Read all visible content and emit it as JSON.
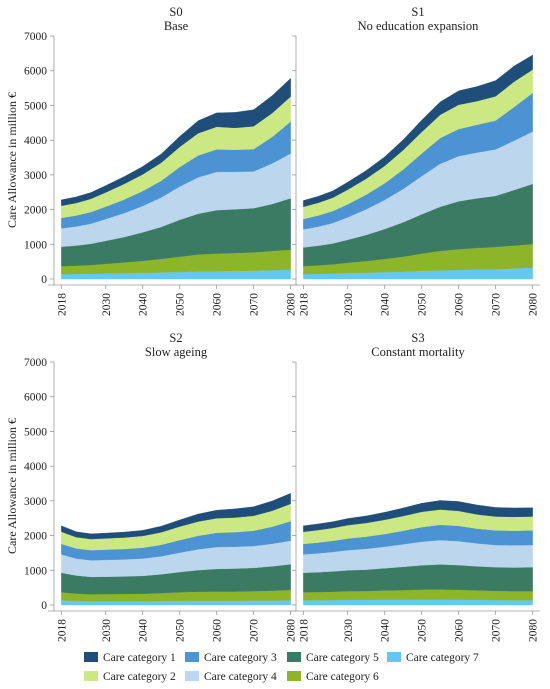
{
  "ylabel": "Care Allowance in million €",
  "yticks": [
    0,
    1000,
    2000,
    3000,
    4000,
    5000,
    6000,
    7000
  ],
  "xticks": [
    2018,
    2030,
    2040,
    2050,
    2060,
    2070,
    2080
  ],
  "legend": [
    {
      "name": "Care category 1",
      "color": "#1e4e79"
    },
    {
      "name": "Care category 2",
      "color": "#cce883"
    },
    {
      "name": "Care category 3",
      "color": "#4c93d4"
    },
    {
      "name": "Care category 4",
      "color": "#bcd6ee"
    },
    {
      "name": "Care category 5",
      "color": "#3b7b64"
    },
    {
      "name": "Care category 6",
      "color": "#8db52a"
    },
    {
      "name": "Care category 7",
      "color": "#65c8f0"
    }
  ],
  "chart_data": [
    {
      "type": "area",
      "stacked": true,
      "title": "S0",
      "subtitle": "Base",
      "x": [
        2018,
        2022,
        2026,
        2030,
        2035,
        2040,
        2045,
        2050,
        2055,
        2060,
        2065,
        2070,
        2075,
        2080
      ],
      "ylim": [
        0,
        7000
      ],
      "series": [
        {
          "name": "Care category 7",
          "values": [
            140,
            145,
            150,
            160,
            170,
            180,
            190,
            205,
            220,
            225,
            235,
            240,
            255,
            265
          ]
        },
        {
          "name": "Care category 6",
          "values": [
            230,
            240,
            255,
            280,
            310,
            345,
            390,
            440,
            490,
            510,
            515,
            530,
            555,
            580
          ]
        },
        {
          "name": "Care category 5",
          "values": [
            560,
            580,
            610,
            660,
            730,
            820,
            920,
            1060,
            1170,
            1250,
            1260,
            1270,
            1350,
            1480
          ]
        },
        {
          "name": "Care category 4",
          "values": [
            530,
            550,
            580,
            630,
            690,
            760,
            850,
            960,
            1050,
            1100,
            1080,
            1060,
            1170,
            1290
          ]
        },
        {
          "name": "Care category 3",
          "values": [
            300,
            315,
            335,
            355,
            390,
            430,
            480,
            560,
            630,
            650,
            635,
            640,
            760,
            920
          ]
        },
        {
          "name": "Care category 2",
          "values": [
            350,
            360,
            380,
            410,
            450,
            480,
            520,
            580,
            640,
            650,
            630,
            660,
            690,
            720
          ]
        },
        {
          "name": "Care category 1",
          "values": [
            170,
            175,
            180,
            195,
            210,
            225,
            250,
            300,
            360,
            400,
            445,
            475,
            500,
            525
          ]
        }
      ]
    },
    {
      "type": "area",
      "stacked": true,
      "title": "S1",
      "subtitle": "No education expansion",
      "x": [
        2018,
        2022,
        2026,
        2030,
        2035,
        2040,
        2045,
        2050,
        2055,
        2060,
        2065,
        2070,
        2075,
        2080
      ],
      "ylim": [
        0,
        7000
      ],
      "series": [
        {
          "name": "Care category 7",
          "values": [
            140,
            150,
            160,
            175,
            185,
            200,
            215,
            235,
            250,
            260,
            275,
            285,
            305,
            330
          ]
        },
        {
          "name": "Care category 6",
          "values": [
            230,
            245,
            265,
            295,
            335,
            380,
            430,
            500,
            560,
            600,
            620,
            640,
            660,
            680
          ]
        },
        {
          "name": "Care category 5",
          "values": [
            540,
            565,
            600,
            660,
            750,
            860,
            990,
            1130,
            1270,
            1380,
            1430,
            1470,
            1600,
            1730
          ]
        },
        {
          "name": "Care category 4",
          "values": [
            520,
            550,
            590,
            650,
            740,
            840,
            960,
            1100,
            1240,
            1300,
            1320,
            1340,
            1420,
            1510
          ]
        },
        {
          "name": "Care category 3",
          "values": [
            300,
            320,
            345,
            375,
            420,
            480,
            560,
            650,
            740,
            780,
            800,
            830,
            970,
            1110
          ]
        },
        {
          "name": "Care category 2",
          "values": [
            350,
            365,
            385,
            420,
            460,
            500,
            560,
            620,
            670,
            700,
            680,
            700,
            730,
            670
          ]
        },
        {
          "name": "Care category 1",
          "values": [
            180,
            185,
            195,
            215,
            235,
            260,
            295,
            340,
            370,
            400,
            420,
            450,
            450,
            420
          ]
        }
      ]
    },
    {
      "type": "area",
      "stacked": true,
      "title": "S2",
      "subtitle": "Slow ageing",
      "x": [
        2018,
        2022,
        2026,
        2030,
        2035,
        2040,
        2045,
        2050,
        2055,
        2060,
        2065,
        2070,
        2075,
        2080
      ],
      "ylim": [
        0,
        7000
      ],
      "series": [
        {
          "name": "Care category 7",
          "values": [
            140,
            120,
            110,
            110,
            110,
            110,
            115,
            120,
            125,
            125,
            125,
            130,
            130,
            135
          ]
        },
        {
          "name": "Care category 6",
          "values": [
            230,
            210,
            200,
            205,
            210,
            215,
            230,
            250,
            260,
            265,
            265,
            270,
            285,
            300
          ]
        },
        {
          "name": "Care category 5",
          "values": [
            560,
            520,
            500,
            500,
            505,
            515,
            540,
            580,
            620,
            650,
            660,
            670,
            700,
            740
          ]
        },
        {
          "name": "Care category 4",
          "values": [
            530,
            490,
            480,
            485,
            490,
            500,
            520,
            560,
            600,
            630,
            630,
            630,
            650,
            680
          ]
        },
        {
          "name": "Care category 3",
          "values": [
            300,
            290,
            290,
            295,
            300,
            310,
            330,
            360,
            390,
            410,
            420,
            440,
            490,
            560
          ]
        },
        {
          "name": "Care category 2",
          "values": [
            350,
            325,
            320,
            325,
            330,
            340,
            360,
            390,
            410,
            420,
            420,
            430,
            460,
            500
          ]
        },
        {
          "name": "Care category 1",
          "values": [
            170,
            155,
            150,
            150,
            155,
            160,
            175,
            190,
            215,
            230,
            250,
            260,
            280,
            300
          ]
        }
      ]
    },
    {
      "type": "area",
      "stacked": true,
      "title": "S3",
      "subtitle": "Constant mortality",
      "x": [
        2018,
        2022,
        2026,
        2030,
        2035,
        2040,
        2045,
        2050,
        2055,
        2060,
        2065,
        2070,
        2075,
        2080
      ],
      "ylim": [
        0,
        7000
      ],
      "series": [
        {
          "name": "Care category 7",
          "values": [
            140,
            140,
            145,
            150,
            150,
            155,
            155,
            160,
            160,
            155,
            150,
            145,
            140,
            140
          ]
        },
        {
          "name": "Care category 6",
          "values": [
            230,
            235,
            240,
            250,
            255,
            265,
            275,
            285,
            290,
            285,
            275,
            265,
            260,
            260
          ]
        },
        {
          "name": "Care category 5",
          "values": [
            560,
            570,
            585,
            600,
            615,
            640,
            670,
            700,
            720,
            710,
            690,
            680,
            680,
            690
          ]
        },
        {
          "name": "Care category 4",
          "values": [
            530,
            545,
            560,
            580,
            600,
            620,
            650,
            680,
            700,
            690,
            660,
            640,
            640,
            640
          ]
        },
        {
          "name": "Care category 3",
          "values": [
            300,
            310,
            320,
            335,
            350,
            365,
            390,
            420,
            440,
            440,
            425,
            420,
            420,
            420
          ]
        },
        {
          "name": "Care category 2",
          "values": [
            350,
            360,
            370,
            385,
            395,
            410,
            425,
            440,
            440,
            430,
            410,
            400,
            400,
            400
          ]
        },
        {
          "name": "Care category 1",
          "values": [
            170,
            175,
            180,
            190,
            200,
            215,
            230,
            245,
            260,
            270,
            270,
            260,
            255,
            250
          ]
        }
      ]
    }
  ]
}
